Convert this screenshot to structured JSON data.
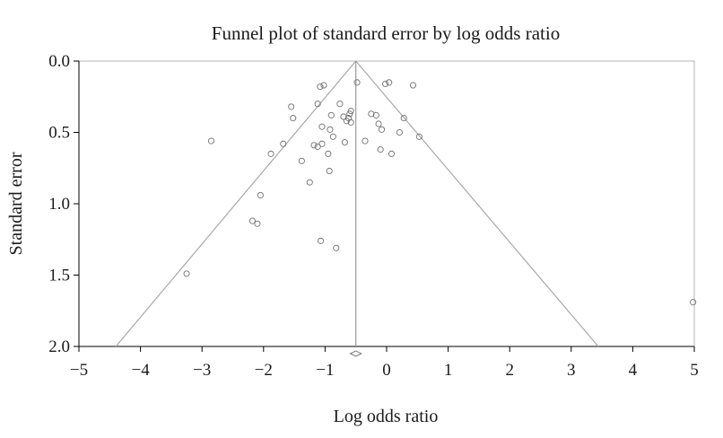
{
  "chart_data": {
    "type": "scatter",
    "title": "Funnel plot of standard error by log odds ratio",
    "xlabel": "Log odds ratio",
    "ylabel": "Standard error",
    "xlim": [
      -5,
      5
    ],
    "ylim": [
      0,
      2
    ],
    "y_inverted": true,
    "x_ticks": [
      -5,
      -4,
      -3,
      -2,
      -1,
      0,
      1,
      2,
      3,
      4,
      5
    ],
    "x_tick_labels": [
      "−5",
      "−4",
      "−3",
      "−2",
      "−1",
      "0",
      "1",
      "2",
      "3",
      "4",
      "5"
    ],
    "y_ticks": [
      0,
      0.5,
      1,
      1.5,
      2
    ],
    "y_tick_labels": [
      "0.0",
      "0.5",
      "1.0",
      "1.5",
      "2.0"
    ],
    "pooled_estimate": -0.5,
    "funnel_limits": {
      "apex": [
        -0.5,
        0
      ],
      "left_base": [
        -4.4,
        2
      ],
      "right_base": [
        3.44,
        2
      ]
    },
    "summary_diamond": {
      "x": -0.5,
      "y": 2.05,
      "half_width": 0.09
    },
    "grid": false,
    "legend": "none",
    "colors": {
      "points": "#707070",
      "funnel": "#a8a8a8",
      "frame": "#b4b4b4",
      "text": "#1a1a1a"
    },
    "points": [
      {
        "x": -0.48,
        "y": 0.15
      },
      {
        "x": -1.08,
        "y": 0.18
      },
      {
        "x": -1.02,
        "y": 0.17
      },
      {
        "x": -0.02,
        "y": 0.16
      },
      {
        "x": 0.04,
        "y": 0.15
      },
      {
        "x": 0.43,
        "y": 0.17
      },
      {
        "x": -0.76,
        "y": 0.3
      },
      {
        "x": -1.12,
        "y": 0.3
      },
      {
        "x": -1.55,
        "y": 0.32
      },
      {
        "x": -0.58,
        "y": 0.35
      },
      {
        "x": -0.6,
        "y": 0.37
      },
      {
        "x": -0.25,
        "y": 0.37
      },
      {
        "x": -0.17,
        "y": 0.38
      },
      {
        "x": -0.9,
        "y": 0.38
      },
      {
        "x": -0.7,
        "y": 0.39
      },
      {
        "x": -0.62,
        "y": 0.4
      },
      {
        "x": -1.52,
        "y": 0.4
      },
      {
        "x": 0.28,
        "y": 0.4
      },
      {
        "x": -0.65,
        "y": 0.42
      },
      {
        "x": -0.58,
        "y": 0.43
      },
      {
        "x": -0.13,
        "y": 0.44
      },
      {
        "x": -1.05,
        "y": 0.46
      },
      {
        "x": -0.08,
        "y": 0.48
      },
      {
        "x": -0.92,
        "y": 0.48
      },
      {
        "x": 0.21,
        "y": 0.5
      },
      {
        "x": -0.87,
        "y": 0.53
      },
      {
        "x": 0.53,
        "y": 0.53
      },
      {
        "x": -2.85,
        "y": 0.56
      },
      {
        "x": -0.68,
        "y": 0.57
      },
      {
        "x": -0.35,
        "y": 0.56
      },
      {
        "x": -1.68,
        "y": 0.58
      },
      {
        "x": -1.05,
        "y": 0.58
      },
      {
        "x": -1.18,
        "y": 0.59
      },
      {
        "x": -1.12,
        "y": 0.6
      },
      {
        "x": -0.1,
        "y": 0.62
      },
      {
        "x": -0.95,
        "y": 0.65
      },
      {
        "x": 0.08,
        "y": 0.65
      },
      {
        "x": -1.88,
        "y": 0.65
      },
      {
        "x": -1.38,
        "y": 0.7
      },
      {
        "x": -0.93,
        "y": 0.77
      },
      {
        "x": -1.25,
        "y": 0.85
      },
      {
        "x": -2.05,
        "y": 0.94
      },
      {
        "x": -2.18,
        "y": 1.12
      },
      {
        "x": -2.1,
        "y": 1.14
      },
      {
        "x": -1.07,
        "y": 1.26
      },
      {
        "x": -0.82,
        "y": 1.31
      },
      {
        "x": -3.25,
        "y": 1.49
      },
      {
        "x": 4.98,
        "y": 1.69
      }
    ]
  }
}
